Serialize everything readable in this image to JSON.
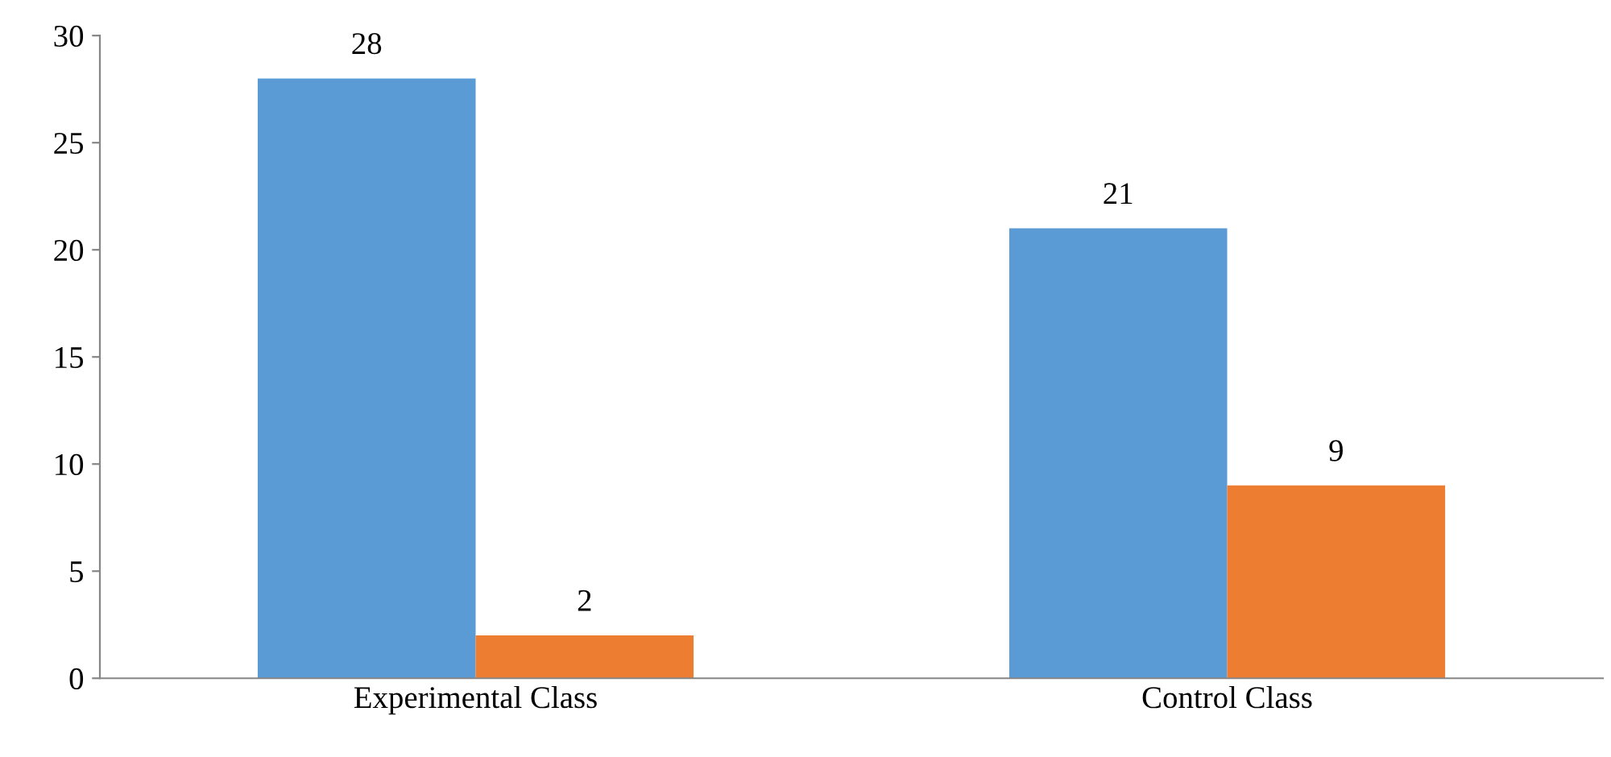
{
  "chart_data": {
    "type": "bar",
    "categories": [
      "Experimental Class",
      "Control Class"
    ],
    "series": [
      {
        "color": "#5b9bd5",
        "values": [
          28,
          21
        ]
      },
      {
        "color": "#ed7d31",
        "values": [
          2,
          9
        ]
      }
    ],
    "ylim": [
      0,
      30
    ],
    "yticks": [
      0,
      5,
      10,
      15,
      20,
      25,
      30
    ],
    "grid": false,
    "legend": false,
    "data_labels": true
  }
}
